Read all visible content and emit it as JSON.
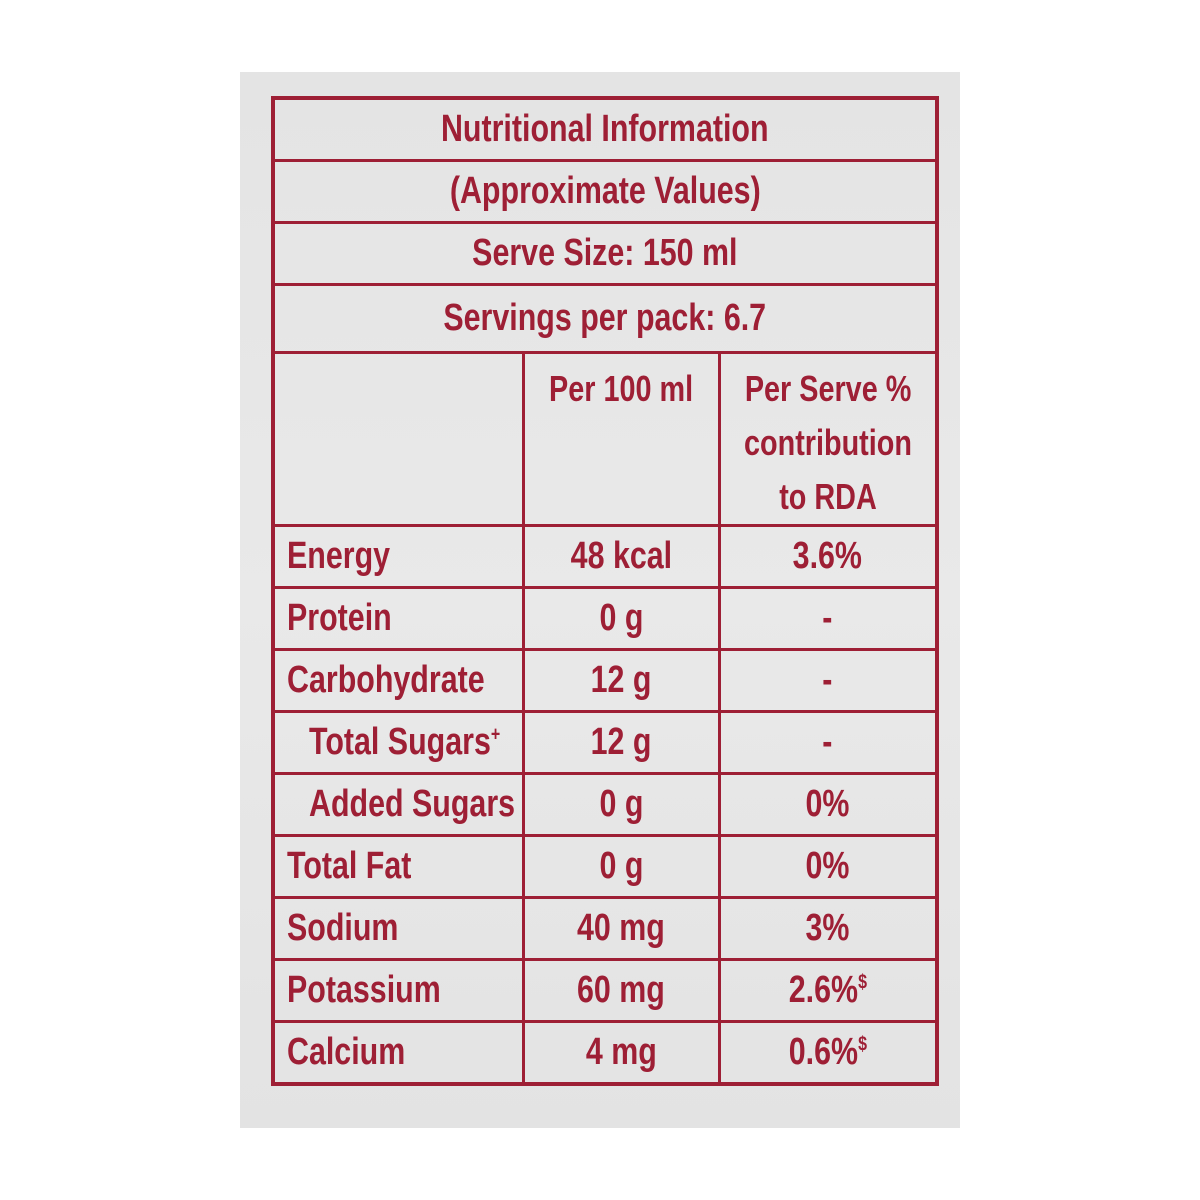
{
  "colors": {
    "ink": "#9e1f35",
    "panel_bg": "#e6e6e6",
    "page_bg": "#ffffff"
  },
  "header": {
    "title": "Nutritional Information",
    "subtitle": "(Approximate Values)",
    "serve_size": "Serve Size: 150 ml",
    "servings_per_pack": "Servings per pack: 6.7"
  },
  "columns": {
    "per_100": "Per 100 ml",
    "per_serve_line1": "Per Serve %",
    "per_serve_line2": "contribution",
    "per_serve_line3": "to RDA"
  },
  "rows": [
    {
      "name": "Energy",
      "per100": "48 kcal",
      "rda": "3.6%"
    },
    {
      "name": "Protein",
      "per100": "0 g",
      "rda": "-"
    },
    {
      "name": "Carbohydrate",
      "per100": "12 g",
      "rda": "-"
    },
    {
      "name": "Total Sugars",
      "name_sup": "+",
      "per100": "12 g",
      "rda": "-"
    },
    {
      "name": "Added Sugars",
      "per100": "0 g",
      "rda": "0%"
    },
    {
      "name": "Total Fat",
      "per100": "0 g",
      "rda": "0%"
    },
    {
      "name": "Sodium",
      "per100": "40 mg",
      "rda": "3%"
    },
    {
      "name": "Potassium",
      "per100": "60 mg",
      "rda": "2.6%",
      "rda_sup": "$"
    },
    {
      "name": "Calcium",
      "per100": "4 mg",
      "rda": "0.6%",
      "rda_sup": "$"
    }
  ]
}
